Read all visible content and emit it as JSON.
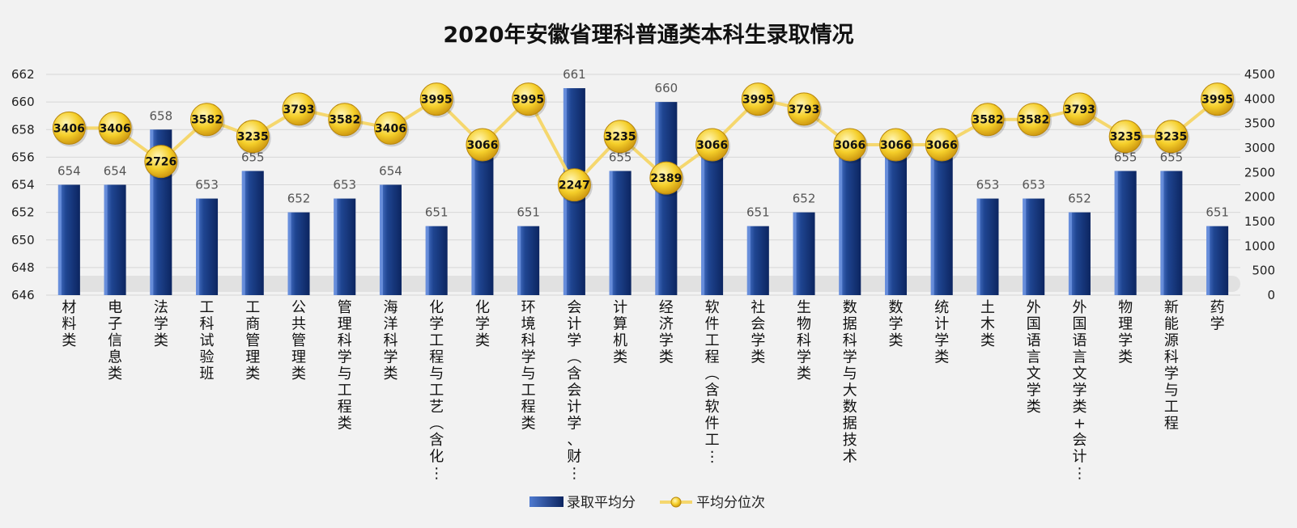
{
  "chart_data": {
    "type": "bar",
    "title": "2020年安徽省理科普通类本科生录取情况",
    "categories": [
      "材料类",
      "电子信息类",
      "法学类",
      "工科试验班",
      "工商管理类",
      "公共管理类",
      "管理科学与工程类",
      "海洋科学类",
      "化学工程与工艺（含化…",
      "化学类",
      "环境科学与工程类",
      "会计学（含会计学、财…",
      "计算机类",
      "经济学类",
      "软件工程（含软件工…",
      "社会学类",
      "生物科学类",
      "数据科学与大数据技术",
      "数学类",
      "统计学类",
      "土木类",
      "外国语言文学类",
      "外国语言文学类+会计…",
      "物理学类",
      "新能源科学与工程",
      "药学"
    ],
    "series": [
      {
        "name": "录取平均分",
        "type": "bar",
        "axis": "left",
        "values": [
          654,
          654,
          658,
          653,
          655,
          652,
          653,
          654,
          651,
          656,
          651,
          661,
          655,
          660,
          656,
          651,
          652,
          656,
          656,
          656,
          653,
          653,
          652,
          655,
          655,
          651
        ]
      },
      {
        "name": "平均分位次",
        "type": "line",
        "axis": "right",
        "values": [
          3406,
          3406,
          2726,
          3582,
          3235,
          3793,
          3582,
          3406,
          3995,
          3066,
          3995,
          2247,
          3235,
          2389,
          3066,
          3995,
          3793,
          3066,
          3066,
          3066,
          3582,
          3582,
          3793,
          3235,
          3235,
          3995
        ]
      }
    ],
    "y_left": {
      "ylim": [
        646,
        662
      ],
      "ticks": [
        "646",
        "648",
        "650",
        "652",
        "654",
        "656",
        "658",
        "660",
        "662"
      ]
    },
    "y_right": {
      "ylim": [
        0,
        4500
      ],
      "ticks": [
        "0",
        "500",
        "1000",
        "1500",
        "2000",
        "2500",
        "3000",
        "3500",
        "4000",
        "4500"
      ]
    },
    "legend_position": "bottom",
    "grid": true,
    "colors": {
      "bar": "#1f4591",
      "bar_dark": "#0c2560",
      "bar_light": "#4f7ad0",
      "line": "#f5d76e",
      "marker": "#f2c21b",
      "marker_edge": "#b8860b",
      "grid": "#d6d6d6",
      "background": "#f2f2f2"
    }
  }
}
